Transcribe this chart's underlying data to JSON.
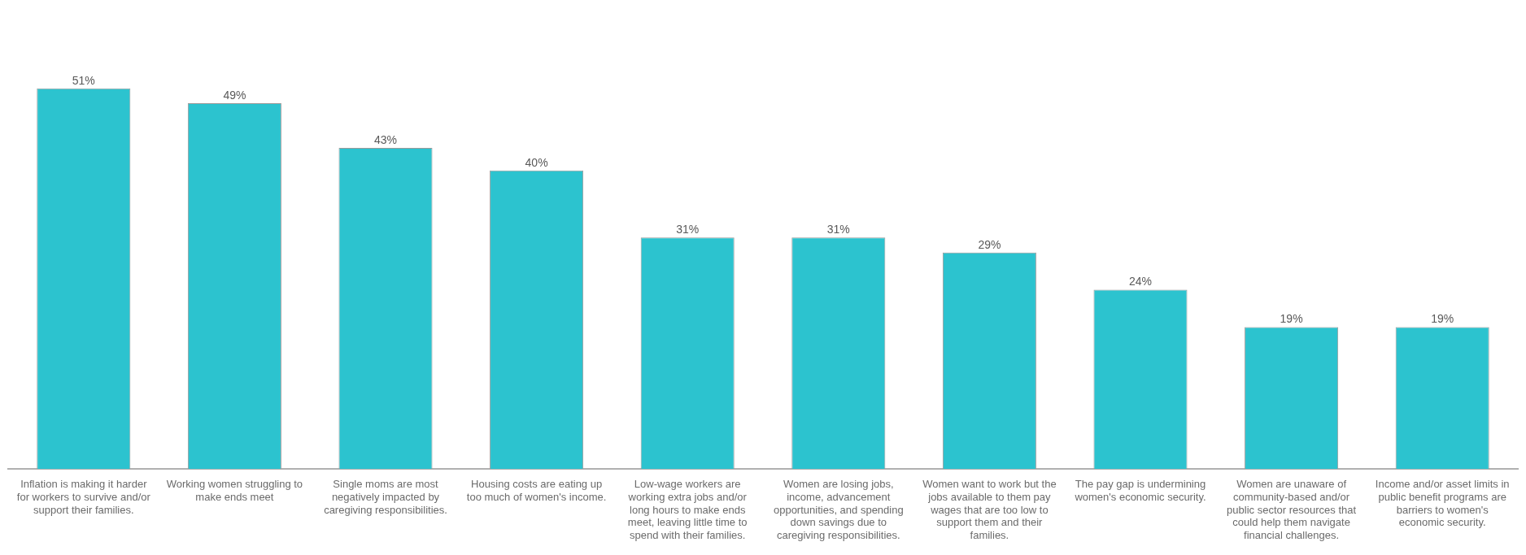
{
  "chart_data": {
    "type": "bar",
    "categories": [
      "Inflation is making it harder for workers to survive and/or support their families.",
      "Working women struggling to make ends meet",
      "Single moms are most negatively impacted by caregiving responsibilities.",
      "Housing costs are eating up too much of women's income.",
      "Low-wage workers are working extra jobs and/or long hours to make ends meet, leaving little time to spend with their families.",
      "Women are losing jobs, income, advancement opportunities, and spending down savings due to caregiving responsibilities.",
      "Women want to work but the jobs available to them pay wages that are too low to support them and their families.",
      "The pay gap is undermining women's economic security.",
      "Women are unaware of community-based and/or public sector resources that could help them navigate financial challenges.",
      "Income and/or asset limits in public benefit programs are barriers to women's economic security."
    ],
    "values": [
      51,
      49,
      43,
      40,
      31,
      31,
      29,
      24,
      19,
      19
    ],
    "value_labels": [
      "51%",
      "49%",
      "43%",
      "40%",
      "31%",
      "31%",
      "29%",
      "24%",
      "19%",
      "19%"
    ],
    "color": "#2cc3cf",
    "grid": false,
    "legend": false
  }
}
